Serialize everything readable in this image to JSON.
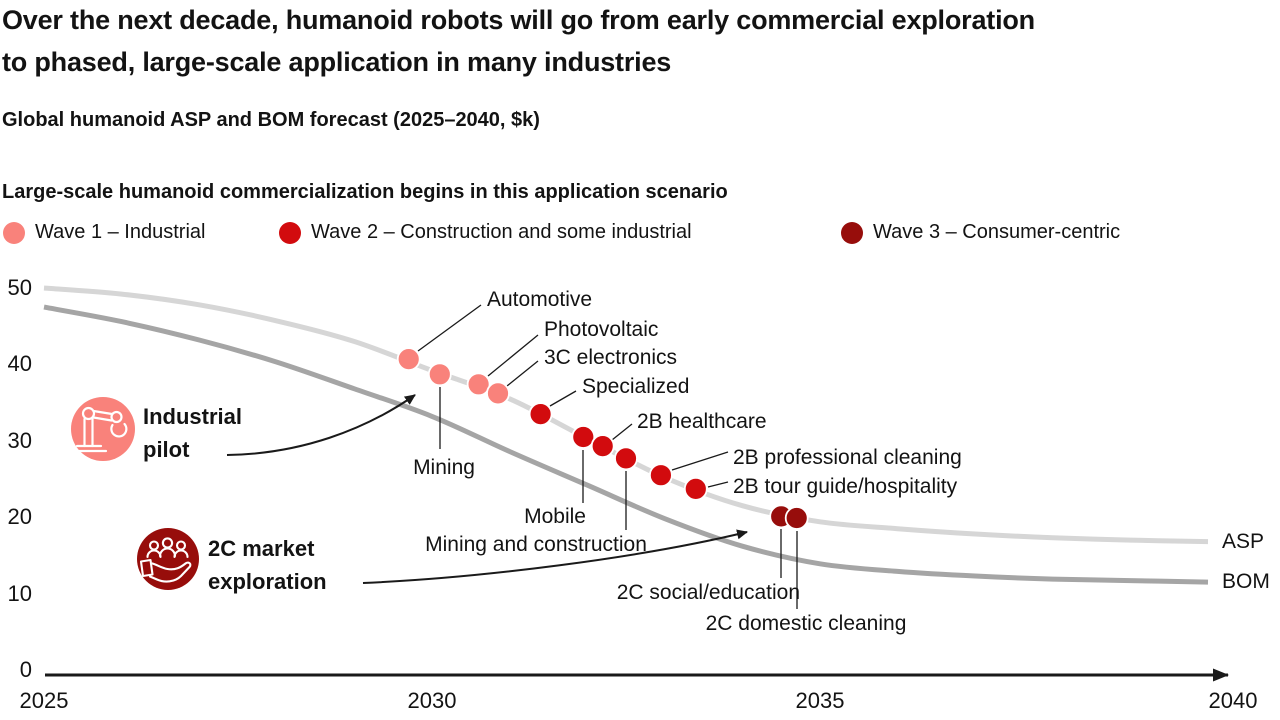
{
  "title_lines": [
    "Over the next decade, humanoid robots will go from early commercial exploration",
    "to phased, large-scale application in many industries"
  ],
  "subtitle": "Global humanoid ASP and BOM forecast (2025–2040, $k)",
  "legend": {
    "heading": "Large-scale humanoid commercialization begins in this application scenario",
    "items": [
      {
        "label": "Wave 1 – Industrial",
        "color": "#f9827b"
      },
      {
        "label": "Wave 2 – Construction and some industrial",
        "color": "#d20b0e"
      },
      {
        "label": "Wave 3 – Consumer-centric",
        "color": "#970d0b"
      }
    ]
  },
  "chart_data": {
    "type": "line",
    "title": "Global humanoid ASP and BOM forecast (2025–2040, $k)",
    "x_axis": {
      "ticks": [
        "2025",
        "2030",
        "2035",
        "2040"
      ],
      "range": [
        2025,
        2040
      ]
    },
    "y_axis": {
      "ticks": [
        50,
        40,
        30,
        20,
        10,
        0
      ],
      "range": [
        0,
        50
      ]
    },
    "grid": false,
    "series": [
      {
        "name": "ASP",
        "color": "#d6d6d6",
        "points": [
          [
            2025,
            50
          ],
          [
            2026,
            49.2
          ],
          [
            2027,
            47.8
          ],
          [
            2028,
            45.7
          ],
          [
            2029,
            43
          ],
          [
            2030,
            39.2
          ],
          [
            2031,
            35.5
          ],
          [
            2032,
            30.3
          ],
          [
            2033,
            25.2
          ],
          [
            2034,
            21.5
          ],
          [
            2035,
            19.4
          ],
          [
            2036,
            18.5
          ],
          [
            2037,
            17.8
          ],
          [
            2038,
            17.3
          ],
          [
            2039,
            17
          ],
          [
            2040,
            16.8
          ]
        ]
      },
      {
        "name": "BOM",
        "color": "#a5a5a5",
        "points": [
          [
            2025,
            47.5
          ],
          [
            2026,
            45.6
          ],
          [
            2027,
            43.2
          ],
          [
            2028,
            40.3
          ],
          [
            2029,
            36.8
          ],
          [
            2030,
            33.2
          ],
          [
            2031,
            28.6
          ],
          [
            2032,
            24.2
          ],
          [
            2033,
            19.8
          ],
          [
            2034,
            16.2
          ],
          [
            2035,
            13.9
          ],
          [
            2036,
            12.9
          ],
          [
            2037,
            12.3
          ],
          [
            2038,
            11.9
          ],
          [
            2039,
            11.7
          ],
          [
            2040,
            11.5
          ]
        ]
      }
    ],
    "milestones": [
      {
        "label": "Automotive",
        "wave": 1,
        "year": 2029.7,
        "value": 40.7
      },
      {
        "label": "Mining",
        "wave": 1,
        "year": 2030.1,
        "value": 38.7
      },
      {
        "label": "Photovoltaic",
        "wave": 1,
        "year": 2030.6,
        "value": 37.4
      },
      {
        "label": "3C electronics",
        "wave": 1,
        "year": 2030.85,
        "value": 36.2
      },
      {
        "label": "Specialized",
        "wave": 2,
        "year": 2031.4,
        "value": 33.5
      },
      {
        "label": "Mobile",
        "wave": 2,
        "year": 2031.95,
        "value": 30.5
      },
      {
        "label": "2B healthcare",
        "wave": 2,
        "year": 2032.2,
        "value": 29.3
      },
      {
        "label": "Mining and construction",
        "wave": 2,
        "year": 2032.5,
        "value": 27.7
      },
      {
        "label": "2B professional cleaning",
        "wave": 2,
        "year": 2032.95,
        "value": 25.5
      },
      {
        "label": "2B tour guide/hospitality",
        "wave": 2,
        "year": 2033.4,
        "value": 23.7
      },
      {
        "label": "2C social/education",
        "wave": 3,
        "year": 2034.5,
        "value": 20.1
      },
      {
        "label": "2C domestic cleaning",
        "wave": 3,
        "year": 2034.7,
        "value": 19.9
      }
    ],
    "annotations": [
      {
        "label_lines": [
          "Industrial",
          "pilot"
        ],
        "icon": "robot-arm-icon",
        "color": "#f9827b"
      },
      {
        "label_lines": [
          "2C market",
          "exploration"
        ],
        "icon": "people-in-hand-icon",
        "color": "#970d0b"
      }
    ]
  }
}
